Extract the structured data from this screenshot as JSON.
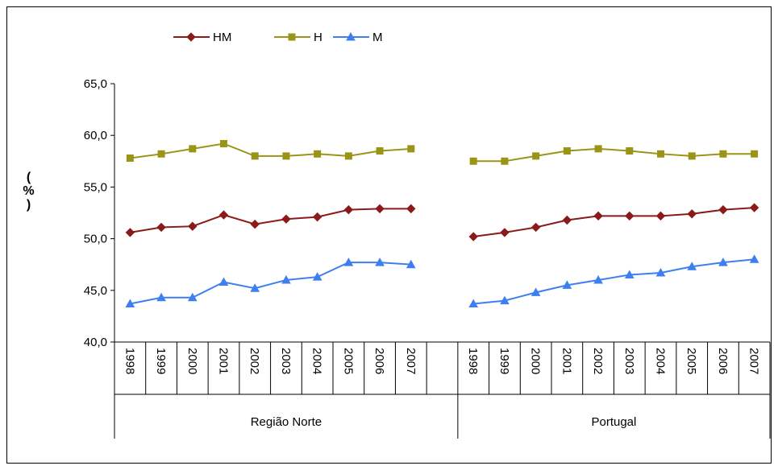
{
  "chart_data": {
    "type": "line",
    "y_label": "(%)",
    "groups": [
      {
        "name": "Região Norte",
        "categories": [
          "1998",
          "1999",
          "2000",
          "2001",
          "2002",
          "2003",
          "2004",
          "2005",
          "2006",
          "2007",
          null
        ]
      },
      {
        "name": "Portugal",
        "categories": [
          "1998",
          "1999",
          "2000",
          "2001",
          "2002",
          "2003",
          "2004",
          "2005",
          "2006",
          "2007"
        ]
      }
    ],
    "series": [
      {
        "name": "HM",
        "color": "#8b1a1a",
        "marker": "diamond",
        "values": [
          50.6,
          51.1,
          51.2,
          52.3,
          51.4,
          51.9,
          52.1,
          52.8,
          52.9,
          52.9,
          null,
          50.2,
          50.6,
          51.1,
          51.8,
          52.2,
          52.2,
          52.2,
          52.4,
          52.8,
          53.0
        ]
      },
      {
        "name": "H",
        "color": "#9a9417",
        "marker": "square",
        "values": [
          57.8,
          58.2,
          58.7,
          59.2,
          58.0,
          58.0,
          58.2,
          58.0,
          58.5,
          58.7,
          null,
          57.5,
          57.5,
          58.0,
          58.5,
          58.7,
          58.5,
          58.2,
          58.0,
          58.2,
          58.2
        ]
      },
      {
        "name": "M",
        "color": "#3d7ff0",
        "marker": "triangle",
        "values": [
          43.7,
          44.3,
          44.3,
          45.8,
          45.2,
          46.0,
          46.3,
          47.7,
          47.7,
          47.5,
          null,
          43.7,
          44.0,
          44.8,
          45.5,
          46.0,
          46.5,
          46.7,
          47.3,
          47.7,
          48.0
        ]
      }
    ],
    "ylim": [
      40,
      65
    ],
    "yticks": [
      {
        "value": 40,
        "label": "40,0"
      },
      {
        "value": 45,
        "label": "45,0"
      },
      {
        "value": 50,
        "label": "50,0"
      },
      {
        "value": 55,
        "label": "55,0"
      },
      {
        "value": 60,
        "label": "60,0"
      },
      {
        "value": 65,
        "label": "65,0"
      }
    ],
    "grid": false,
    "legend": "top"
  }
}
